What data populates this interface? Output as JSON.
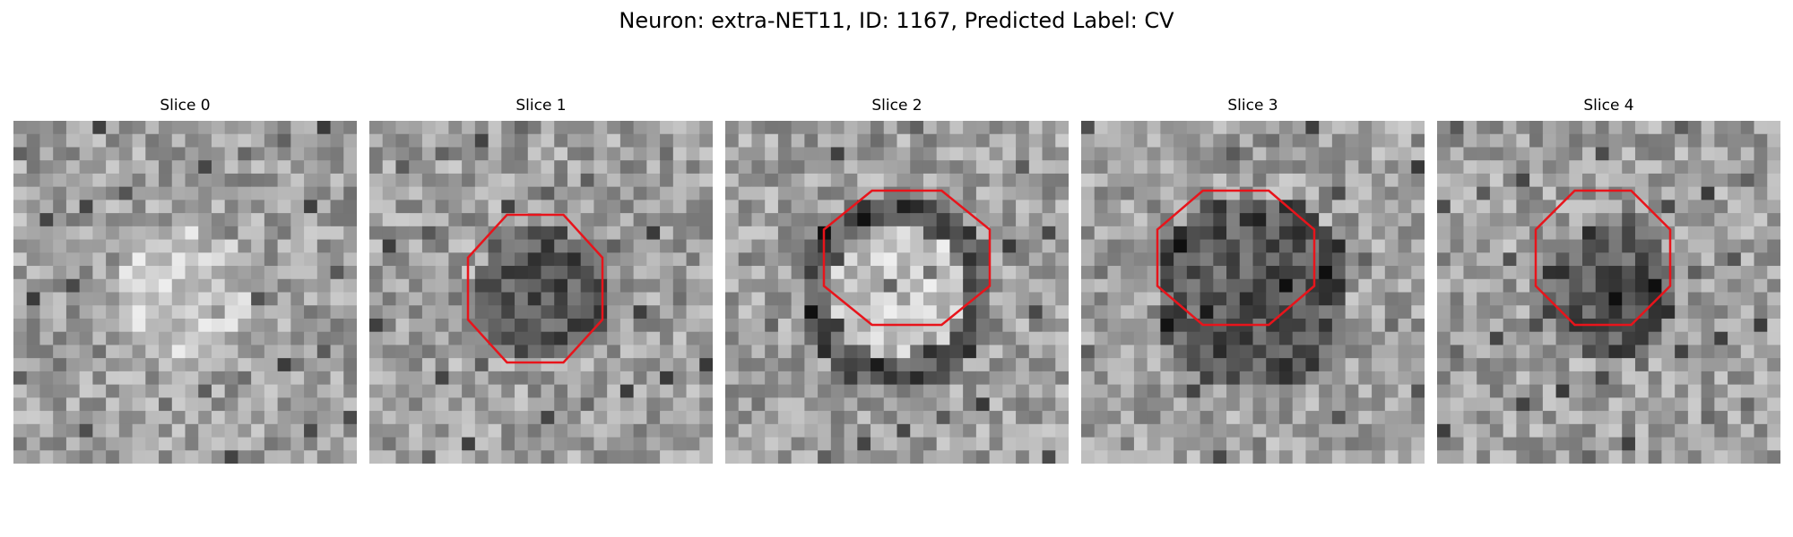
{
  "title": "Neuron: extra-NET11, ID: 1167, Predicted Label: CV",
  "colors": {
    "contour": "#e8141b",
    "background": "#ffffff"
  },
  "panels": [
    {
      "label": "Slice 0",
      "has_contour": false,
      "bright_center": true,
      "dark_ring": false,
      "seed": 11
    },
    {
      "label": "Slice 1",
      "has_contour": true,
      "bright_center": false,
      "dark_ring": false,
      "seed": 23
    },
    {
      "label": "Slice 2",
      "has_contour": true,
      "bright_center": true,
      "dark_ring": true,
      "seed": 37
    },
    {
      "label": "Slice 3",
      "has_contour": true,
      "bright_center": false,
      "dark_ring": true,
      "seed": 51
    },
    {
      "label": "Slice 4",
      "has_contour": true,
      "bright_center": false,
      "dark_ring": false,
      "seed": 67
    }
  ]
}
